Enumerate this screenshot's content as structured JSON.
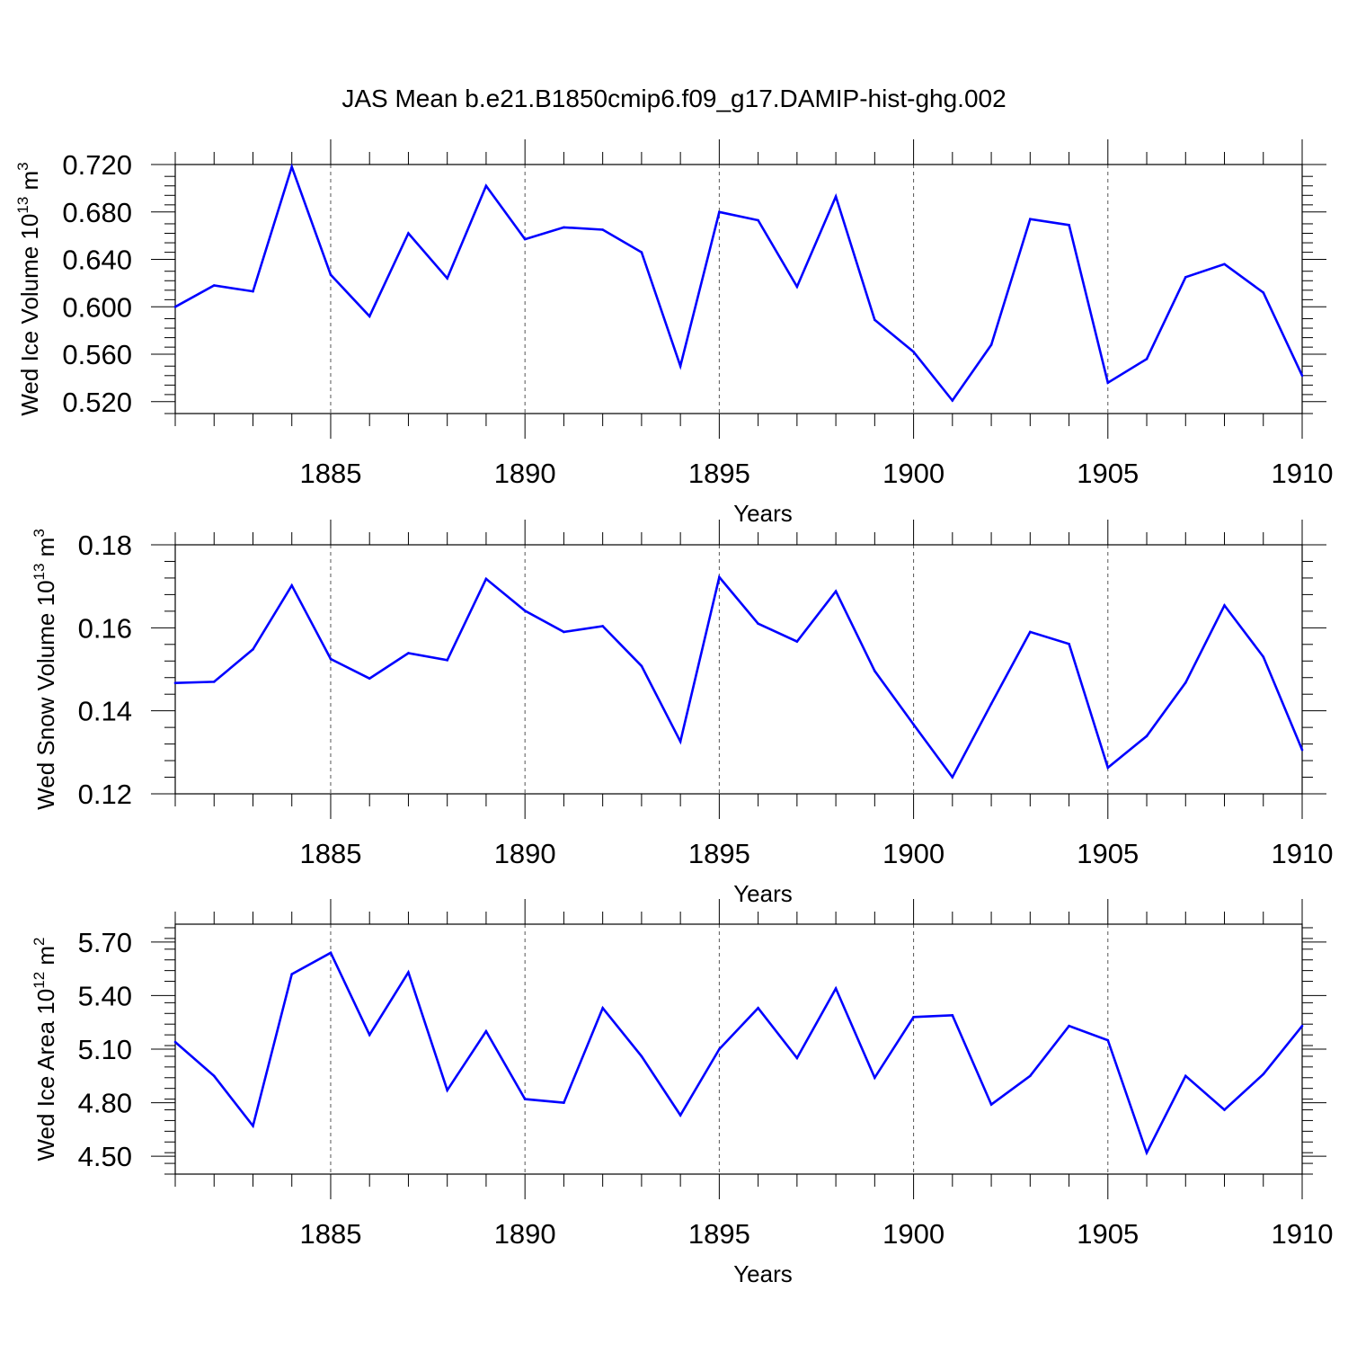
{
  "figure_title": "JAS Mean b.e21.B1850cmip6.f09_g17.DAMIP-hist-ghg.002",
  "colors": {
    "line": "#0000ff",
    "axis": "#000000",
    "grid": "#555555"
  },
  "chart_data": [
    {
      "type": "line",
      "ylabel": "Wed Ice Volume",
      "ylabel_exp": "13",
      "ylabel_unit_exp": "3",
      "xlabel": "Years",
      "xlim": [
        1881,
        1910
      ],
      "ylim": [
        0.51,
        0.72
      ],
      "y_ticks": [
        0.52,
        0.56,
        0.6,
        0.64,
        0.68,
        0.72
      ],
      "y_tick_labels": [
        "0.520",
        "0.560",
        "0.600",
        "0.640",
        "0.680",
        "0.720"
      ],
      "y_minor_step": 0.008,
      "x_ticks": [
        1885,
        1890,
        1895,
        1900,
        1905,
        1910
      ],
      "x_tick_labels": [
        "1885",
        "1890",
        "1895",
        "1900",
        "1905",
        "1910"
      ],
      "x": [
        1881,
        1882,
        1883,
        1884,
        1885,
        1886,
        1887,
        1888,
        1889,
        1890,
        1891,
        1892,
        1893,
        1894,
        1895,
        1896,
        1897,
        1898,
        1899,
        1900,
        1901,
        1902,
        1903,
        1904,
        1905,
        1906,
        1907,
        1908,
        1909,
        1910
      ],
      "values": [
        0.6,
        0.618,
        0.613,
        0.718,
        0.627,
        0.592,
        0.662,
        0.624,
        0.702,
        0.657,
        0.667,
        0.665,
        0.646,
        0.55,
        0.68,
        0.673,
        0.617,
        0.693,
        0.589,
        0.562,
        0.521,
        0.568,
        0.674,
        0.669,
        0.536,
        0.556,
        0.625,
        0.636,
        0.612,
        0.542
      ]
    },
    {
      "type": "line",
      "ylabel": "Wed Snow Volume",
      "ylabel_exp": "13",
      "ylabel_unit_exp": "3",
      "xlabel": "Years",
      "xlim": [
        1881,
        1910
      ],
      "ylim": [
        0.12,
        0.18
      ],
      "y_ticks": [
        0.12,
        0.14,
        0.16,
        0.18
      ],
      "y_tick_labels": [
        "0.12",
        "0.14",
        "0.16",
        "0.18"
      ],
      "y_minor_step": 0.004,
      "x_ticks": [
        1885,
        1890,
        1895,
        1900,
        1905,
        1910
      ],
      "x_tick_labels": [
        "1885",
        "1890",
        "1895",
        "1900",
        "1905",
        "1910"
      ],
      "x": [
        1881,
        1882,
        1883,
        1884,
        1885,
        1886,
        1887,
        1888,
        1889,
        1890,
        1891,
        1892,
        1893,
        1894,
        1895,
        1896,
        1897,
        1898,
        1899,
        1900,
        1901,
        1902,
        1903,
        1904,
        1905,
        1906,
        1907,
        1908,
        1909,
        1910
      ],
      "values": [
        0.1467,
        0.147,
        0.1548,
        0.1702,
        0.1525,
        0.1478,
        0.1539,
        0.1522,
        0.1718,
        0.1641,
        0.159,
        0.1604,
        0.1508,
        0.1326,
        0.1722,
        0.161,
        0.1567,
        0.1688,
        0.1496,
        0.1367,
        0.124,
        0.1417,
        0.159,
        0.1561,
        0.1263,
        0.1339,
        0.1468,
        0.1654,
        0.153,
        0.1306
      ]
    },
    {
      "type": "line",
      "ylabel": "Wed Ice Area",
      "ylabel_exp": "12",
      "ylabel_unit_exp": "2",
      "xlabel": "Years",
      "xlim": [
        1881,
        1910
      ],
      "ylim": [
        4.4,
        5.8
      ],
      "y_ticks": [
        4.5,
        4.8,
        5.1,
        5.4,
        5.7
      ],
      "y_tick_labels": [
        "4.50",
        "4.80",
        "5.10",
        "5.40",
        "5.70"
      ],
      "y_minor_step": 0.06,
      "x_ticks": [
        1885,
        1890,
        1895,
        1900,
        1905,
        1910
      ],
      "x_tick_labels": [
        "1885",
        "1890",
        "1895",
        "1900",
        "1905",
        "1910"
      ],
      "x": [
        1881,
        1882,
        1883,
        1884,
        1885,
        1886,
        1887,
        1888,
        1889,
        1890,
        1891,
        1892,
        1893,
        1894,
        1895,
        1896,
        1897,
        1898,
        1899,
        1900,
        1901,
        1902,
        1903,
        1904,
        1905,
        1906,
        1907,
        1908,
        1909,
        1910
      ],
      "values": [
        5.14,
        4.95,
        4.67,
        5.52,
        5.64,
        5.18,
        5.53,
        4.87,
        5.2,
        4.82,
        4.8,
        5.33,
        5.06,
        4.73,
        5.1,
        5.33,
        5.05,
        5.44,
        4.94,
        5.28,
        5.29,
        4.79,
        4.95,
        5.23,
        5.15,
        4.52,
        4.95,
        4.76,
        4.96,
        5.23
      ]
    }
  ]
}
